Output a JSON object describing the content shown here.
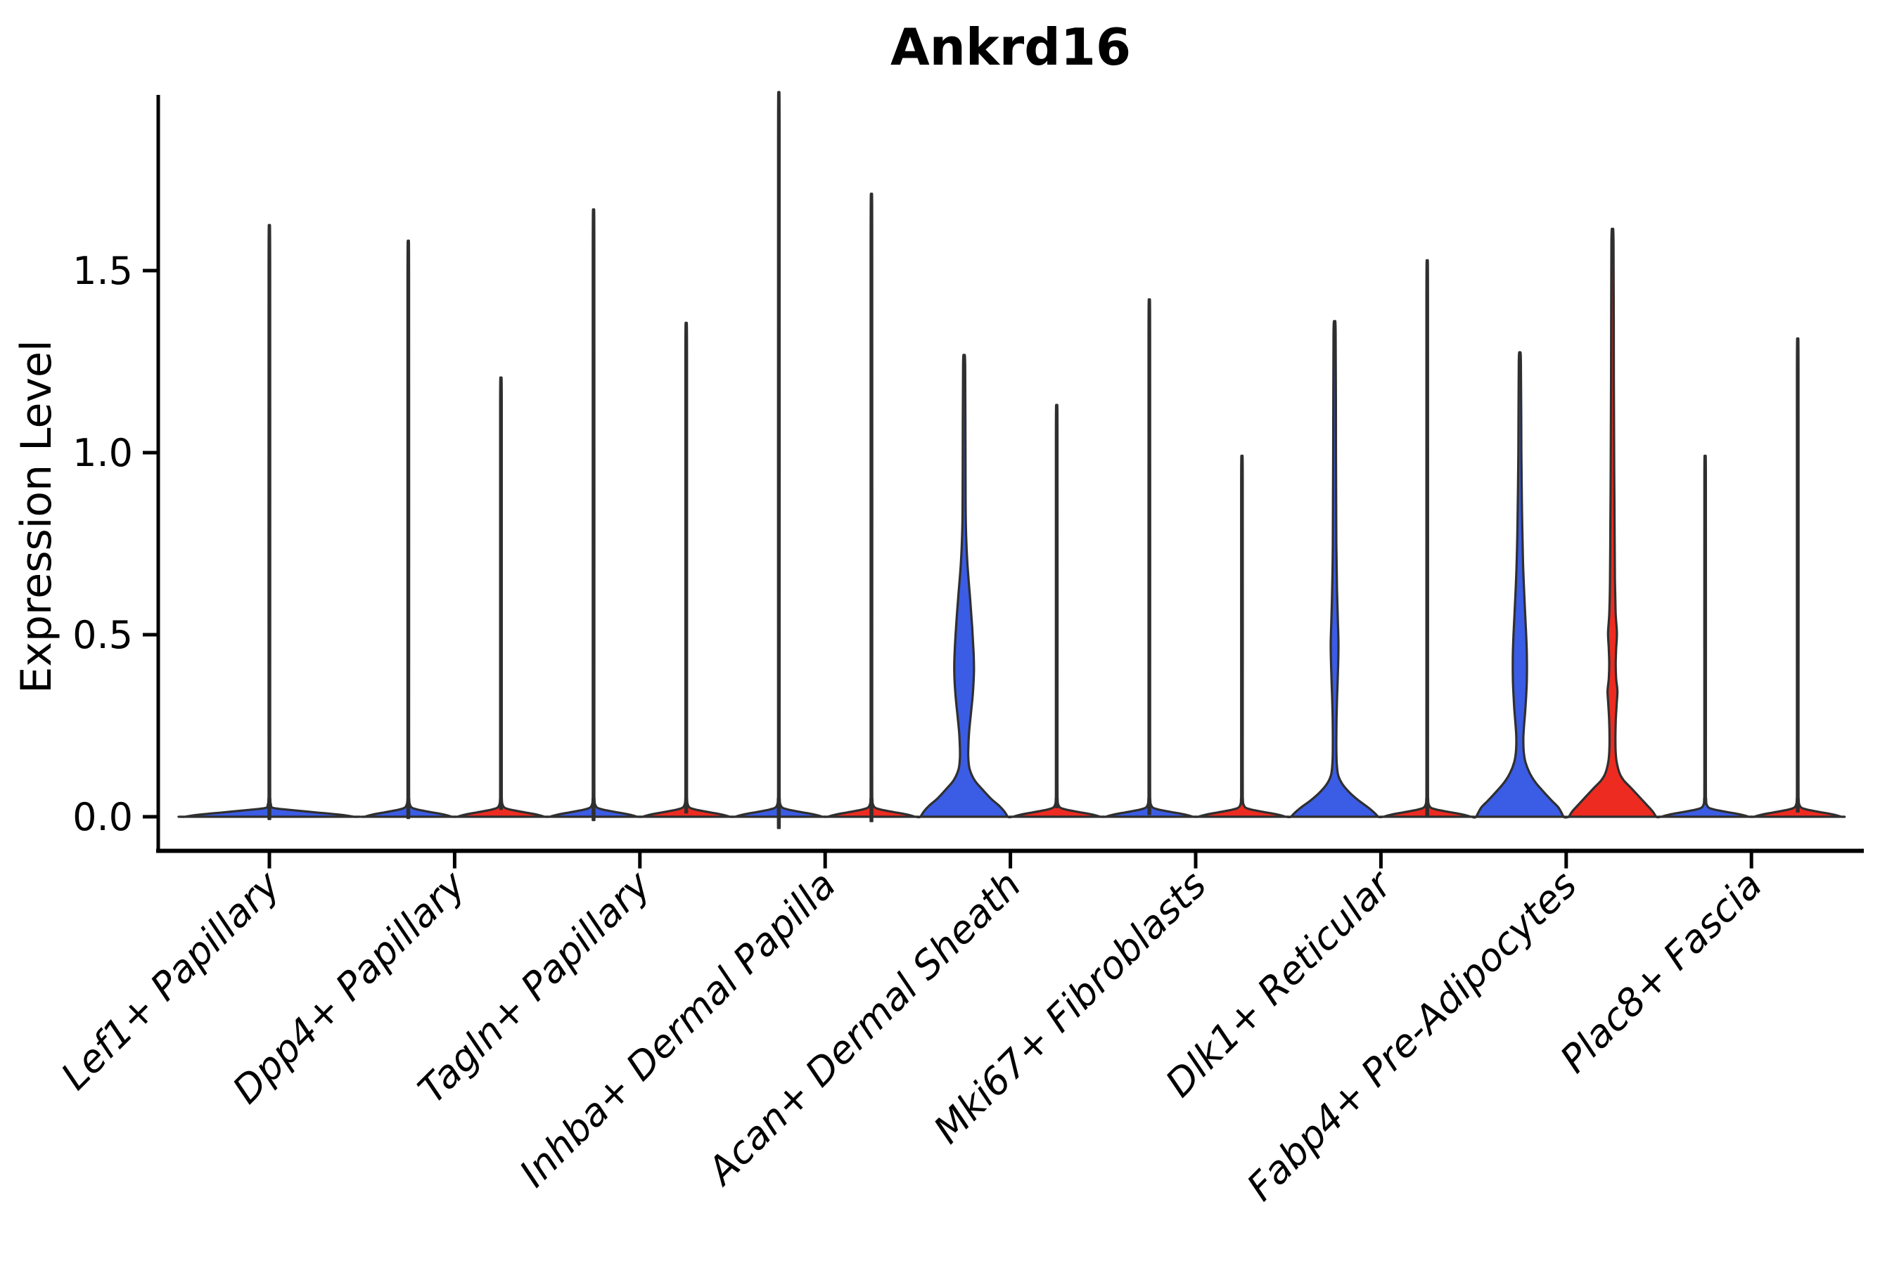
{
  "chart_data": {
    "type": "violin",
    "title": "Ankrd16",
    "xlabel": "",
    "ylabel": "Expression Level",
    "ytick_labels": [
      "0.0",
      "0.5",
      "1.0",
      "1.5"
    ],
    "ytick_values": [
      0.0,
      0.5,
      1.0,
      1.5
    ],
    "ylim": [
      -0.09,
      1.98
    ],
    "grid": false,
    "legend": "none",
    "categories": [
      "Lef1+ Papillary",
      "Dpp4+ Papillary",
      "Tagln+ Papillary",
      "Inhba+ Dermal Papilla",
      "Acan+ Dermal Sheath",
      "Mki67+ Fibroblasts",
      "Dlk1+ Reticular",
      "Fabp4+ Pre-Adipocytes",
      "Plac8+ Fascia"
    ],
    "colors": {
      "group1_fill": "#3b5ce4",
      "group2_fill": "#ee2b20",
      "outline": "#2f2f2f",
      "axis": "#000000",
      "background": "#ffffff"
    },
    "violins": [
      {
        "category_index": 0,
        "side": 0,
        "color_key": "group1_fill",
        "max_expression": 1.53,
        "shape": "spike",
        "base_halfwidth": 120
      },
      {
        "category_index": 1,
        "side": -1,
        "color_key": "group1_fill",
        "max_expression": 1.49,
        "shape": "spike",
        "base_halfwidth": 62
      },
      {
        "category_index": 1,
        "side": 1,
        "color_key": "group2_fill",
        "max_expression": 1.14,
        "shape": "spike",
        "base_halfwidth": 62
      },
      {
        "category_index": 2,
        "side": -1,
        "color_key": "group1_fill",
        "max_expression": 1.57,
        "shape": "spike",
        "base_halfwidth": 62
      },
      {
        "category_index": 2,
        "side": 1,
        "color_key": "group2_fill",
        "max_expression": 1.28,
        "shape": "spike",
        "base_halfwidth": 62
      },
      {
        "category_index": 3,
        "side": -1,
        "color_key": "group1_fill",
        "max_expression": 1.87,
        "shape": "spike",
        "base_halfwidth": 62
      },
      {
        "category_index": 3,
        "side": 1,
        "color_key": "group2_fill",
        "max_expression": 1.61,
        "shape": "spike",
        "base_halfwidth": 62
      },
      {
        "category_index": 4,
        "side": -1,
        "color_key": "group1_fill",
        "max_expression": 1.26,
        "shape": "custom",
        "base_halfwidth": 62,
        "profile": [
          [
            1.26,
            0
          ],
          [
            1.24,
            1.5
          ],
          [
            0.95,
            2
          ],
          [
            0.8,
            2.5
          ],
          [
            0.7,
            4.5
          ],
          [
            0.6,
            8.5
          ],
          [
            0.52,
            11.5
          ],
          [
            0.45,
            13.5
          ],
          [
            0.4,
            14
          ],
          [
            0.34,
            12.5
          ],
          [
            0.28,
            9.5
          ],
          [
            0.23,
            7
          ],
          [
            0.19,
            6
          ],
          [
            0.16,
            6
          ],
          [
            0.13,
            8
          ],
          [
            0.1,
            15
          ],
          [
            0.075,
            26
          ],
          [
            0.05,
            38
          ],
          [
            0.03,
            50
          ],
          [
            0.015,
            57
          ],
          [
            0,
            62
          ]
        ]
      },
      {
        "category_index": 4,
        "side": 1,
        "color_key": "group2_fill",
        "max_expression": 1.07,
        "shape": "spike",
        "base_halfwidth": 62
      },
      {
        "category_index": 5,
        "side": -1,
        "color_key": "group1_fill",
        "max_expression": 1.34,
        "shape": "spike",
        "base_halfwidth": 62
      },
      {
        "category_index": 5,
        "side": 1,
        "color_key": "group2_fill",
        "max_expression": 0.94,
        "shape": "spike",
        "base_halfwidth": 62
      },
      {
        "category_index": 6,
        "side": -1,
        "color_key": "group1_fill",
        "max_expression": 1.35,
        "shape": "custom",
        "base_halfwidth": 62,
        "profile": [
          [
            1.35,
            0
          ],
          [
            1.33,
            1.5
          ],
          [
            1.0,
            2
          ],
          [
            0.75,
            2.5
          ],
          [
            0.62,
            3.5
          ],
          [
            0.53,
            4.8
          ],
          [
            0.47,
            5.5
          ],
          [
            0.4,
            4.8
          ],
          [
            0.33,
            3.6
          ],
          [
            0.27,
            2.8
          ],
          [
            0.2,
            2.5
          ],
          [
            0.15,
            3
          ],
          [
            0.115,
            5
          ],
          [
            0.09,
            11
          ],
          [
            0.065,
            22
          ],
          [
            0.045,
            34
          ],
          [
            0.025,
            48
          ],
          [
            0.012,
            56
          ],
          [
            0,
            62
          ]
        ]
      },
      {
        "category_index": 6,
        "side": 1,
        "color_key": "group2_fill",
        "max_expression": 1.44,
        "shape": "spike",
        "base_halfwidth": 62
      },
      {
        "category_index": 7,
        "side": -1,
        "color_key": "group1_fill",
        "max_expression": 1.27,
        "shape": "custom",
        "base_halfwidth": 62,
        "profile": [
          [
            1.27,
            0
          ],
          [
            1.25,
            1.5
          ],
          [
            1.0,
            2.2
          ],
          [
            0.85,
            3
          ],
          [
            0.7,
            4.5
          ],
          [
            0.58,
            7
          ],
          [
            0.5,
            9
          ],
          [
            0.44,
            10
          ],
          [
            0.37,
            9.8
          ],
          [
            0.3,
            8
          ],
          [
            0.25,
            6
          ],
          [
            0.215,
            5
          ],
          [
            0.18,
            5.5
          ],
          [
            0.15,
            8
          ],
          [
            0.12,
            14
          ],
          [
            0.095,
            22
          ],
          [
            0.07,
            33
          ],
          [
            0.045,
            45
          ],
          [
            0.025,
            55
          ],
          [
            0,
            62
          ]
        ]
      },
      {
        "category_index": 7,
        "side": 1,
        "color_key": "group2_fill",
        "max_expression": 1.6,
        "shape": "custom",
        "base_halfwidth": 62,
        "profile": [
          [
            1.6,
            0
          ],
          [
            1.58,
            1.5
          ],
          [
            1.2,
            2
          ],
          [
            0.95,
            2.5
          ],
          [
            0.8,
            3
          ],
          [
            0.65,
            3.5
          ],
          [
            0.56,
            4.5
          ],
          [
            0.505,
            6.3
          ],
          [
            0.46,
            5.2
          ],
          [
            0.42,
            4.6
          ],
          [
            0.38,
            5.2
          ],
          [
            0.345,
            7
          ],
          [
            0.31,
            6
          ],
          [
            0.27,
            4.8
          ],
          [
            0.22,
            4.2
          ],
          [
            0.18,
            4.5
          ],
          [
            0.15,
            6
          ],
          [
            0.12,
            10
          ],
          [
            0.1,
            16
          ],
          [
            0.08,
            26
          ],
          [
            0.055,
            38
          ],
          [
            0.03,
            50
          ],
          [
            0.015,
            57
          ],
          [
            0,
            62
          ]
        ]
      },
      {
        "category_index": 8,
        "side": -1,
        "color_key": "group1_fill",
        "max_expression": 0.94,
        "shape": "spike",
        "base_halfwidth": 62
      },
      {
        "category_index": 8,
        "side": 1,
        "color_key": "group2_fill",
        "max_expression": 1.24,
        "shape": "spike",
        "base_halfwidth": 62
      }
    ]
  }
}
